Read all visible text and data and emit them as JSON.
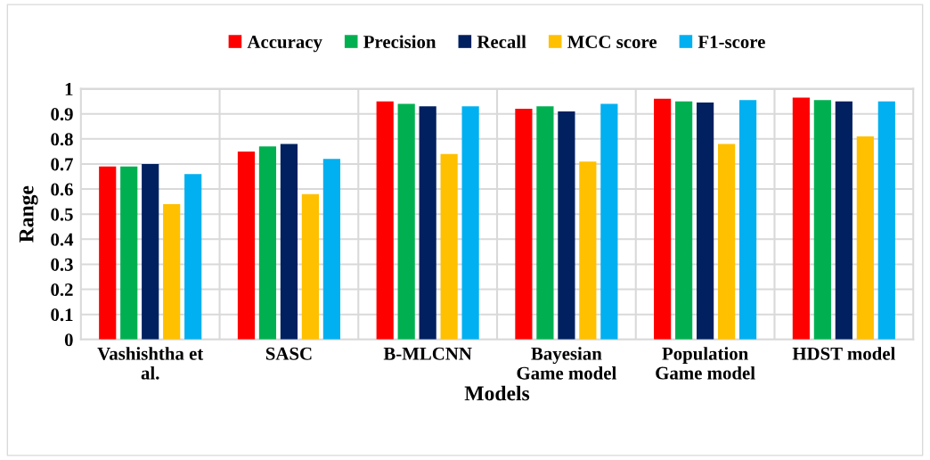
{
  "chart_data": {
    "type": "bar",
    "xlabel": "Models",
    "ylabel": "Range",
    "categories": [
      "Vashishtha et\nal.",
      "SASC",
      "B-MLCNN",
      "Bayesian\nGame model",
      "Population\nGame model",
      "HDST model"
    ],
    "series": [
      {
        "name": "Accuracy",
        "color": "#ff0000",
        "values": [
          0.69,
          0.75,
          0.95,
          0.92,
          0.96,
          0.965
        ]
      },
      {
        "name": "Precision",
        "color": "#00b050",
        "values": [
          0.69,
          0.77,
          0.94,
          0.93,
          0.95,
          0.955
        ]
      },
      {
        "name": "Recall",
        "color": "#002060",
        "values": [
          0.7,
          0.78,
          0.93,
          0.91,
          0.945,
          0.95
        ]
      },
      {
        "name": "MCC score",
        "color": "#ffc000",
        "values": [
          0.54,
          0.58,
          0.74,
          0.71,
          0.78,
          0.81
        ]
      },
      {
        "name": "F1-score",
        "color": "#00b0f0",
        "values": [
          0.66,
          0.72,
          0.93,
          0.94,
          0.955,
          0.95
        ]
      }
    ],
    "ylim": [
      0,
      1
    ],
    "yticks": [
      0,
      0.1,
      0.2,
      0.3,
      0.4,
      0.5,
      0.6,
      0.7,
      0.8,
      0.9,
      1
    ],
    "grid": true,
    "legend": "top"
  }
}
